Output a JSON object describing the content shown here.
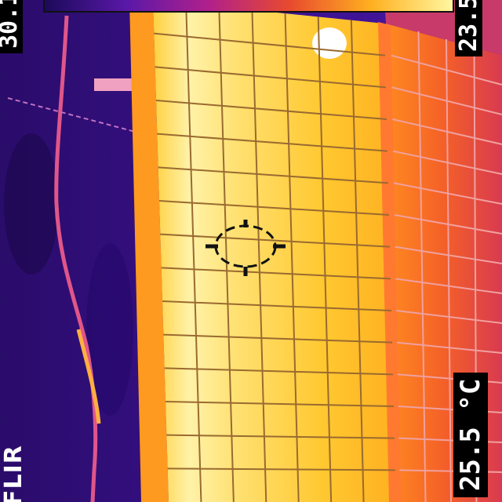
{
  "overlay": {
    "max_temp": "30.1",
    "min_temp": "23.5",
    "spot_temp": "25.5 °C",
    "brand": "FLIR"
  },
  "palette": [
    "#1b0a5a",
    "#5a18a8",
    "#b0208c",
    "#e84a2e",
    "#ffb020",
    "#fff7a0"
  ],
  "icons": {
    "crosshair": "spot-crosshair-icon"
  }
}
